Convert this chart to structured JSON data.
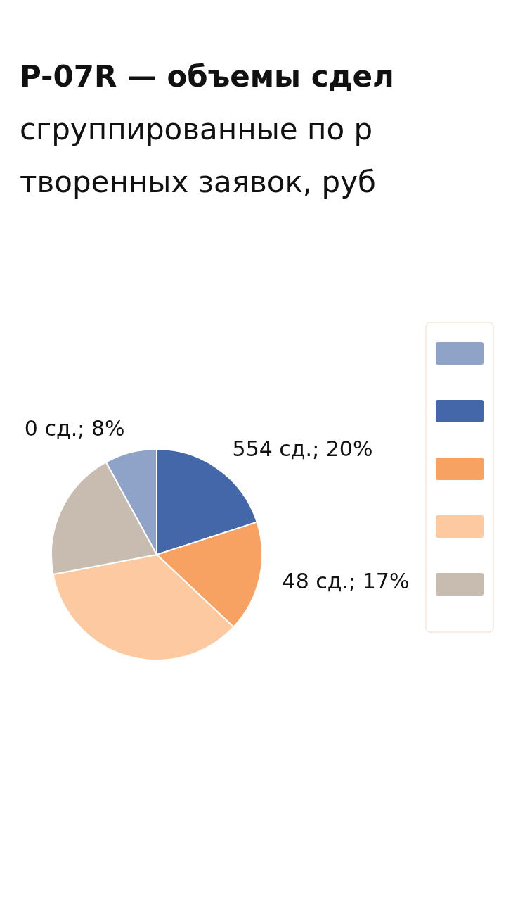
{
  "chart_data": {
    "type": "pie",
    "title": "P-07R — объемы сдел\nсгруппированные по р\nтворенных заявок, руб",
    "categories": [
      null,
      null,
      null,
      null,
      null
    ],
    "values": [
      8,
      20,
      17,
      35,
      20
    ],
    "colors": [
      "#8fa3c8",
      "#4367a8",
      "#f7a263",
      "#fdc9a0",
      "#c8bbb0"
    ],
    "value_labels": [
      "0 сд.; 8%",
      "554 сд.; 20%",
      "48 сд.; 17%",
      null,
      null
    ]
  }
}
